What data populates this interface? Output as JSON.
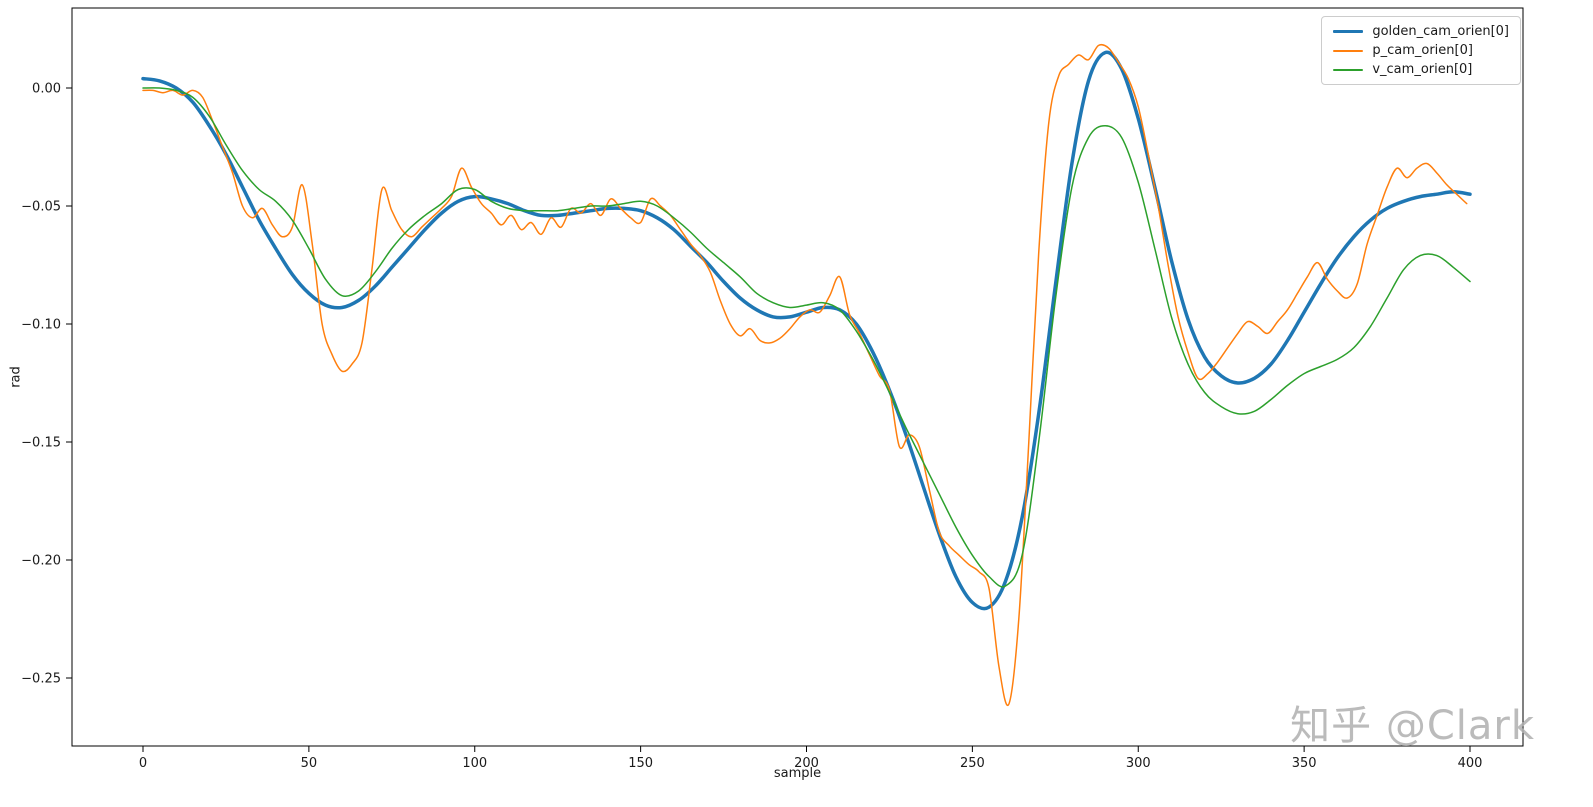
{
  "figure": {
    "watermark": "知乎 @Clark"
  },
  "chart_data": {
    "type": "line",
    "title": "",
    "xlabel": "sample",
    "ylabel": "rad",
    "xlim": [
      -21,
      416
    ],
    "ylim": [
      -0.278,
      0.034
    ],
    "grid": false,
    "legend_position": "upper right",
    "x_ticks": [
      0,
      50,
      100,
      150,
      200,
      250,
      300,
      350,
      400
    ],
    "x_tick_labels": [
      "0",
      "50",
      "100",
      "150",
      "200",
      "250",
      "300",
      "350",
      "400"
    ],
    "y_ticks": [
      0.0,
      -0.05,
      -0.1,
      -0.15,
      -0.2,
      -0.25
    ],
    "y_tick_labels": [
      "0.00",
      "−0.05",
      "−0.10",
      "−0.15",
      "−0.20",
      "−0.25"
    ],
    "series": [
      {
        "name": "golden_cam_orien[0]",
        "color": "#1f77b4",
        "line_width": 3.5,
        "x_start": 0,
        "x_step": 5,
        "y": [
          0.004,
          0.003,
          0.0,
          -0.006,
          -0.016,
          -0.028,
          -0.042,
          -0.056,
          -0.068,
          -0.079,
          -0.087,
          -0.092,
          -0.093,
          -0.09,
          -0.084,
          -0.076,
          -0.068,
          -0.06,
          -0.053,
          -0.048,
          -0.046,
          -0.047,
          -0.049,
          -0.052,
          -0.054,
          -0.054,
          -0.053,
          -0.052,
          -0.051,
          -0.051,
          -0.052,
          -0.055,
          -0.06,
          -0.067,
          -0.074,
          -0.082,
          -0.089,
          -0.094,
          -0.097,
          -0.097,
          -0.095,
          -0.093,
          -0.094,
          -0.1,
          -0.112,
          -0.128,
          -0.147,
          -0.168,
          -0.189,
          -0.207,
          -0.218,
          -0.22,
          -0.209,
          -0.182,
          -0.138,
          -0.084,
          -0.032,
          0.003,
          0.015,
          0.008,
          -0.013,
          -0.042,
          -0.073,
          -0.098,
          -0.114,
          -0.122,
          -0.125,
          -0.123,
          -0.117,
          -0.107,
          -0.095,
          -0.083,
          -0.072,
          -0.063,
          -0.056,
          -0.051,
          -0.048,
          -0.046,
          -0.045,
          -0.044,
          -0.045
        ]
      },
      {
        "name": "p_cam_orien[0]",
        "color": "#ff7f0e",
        "line_width": 1.5,
        "x_start": 0,
        "x_step": 3,
        "y": [
          -0.001,
          -0.001,
          -0.002,
          -0.001,
          -0.003,
          -0.001,
          -0.004,
          -0.014,
          -0.025,
          -0.036,
          -0.05,
          -0.055,
          -0.051,
          -0.058,
          -0.063,
          -0.059,
          -0.041,
          -0.066,
          -0.1,
          -0.113,
          -0.12,
          -0.117,
          -0.108,
          -0.077,
          -0.043,
          -0.052,
          -0.06,
          -0.063,
          -0.059,
          -0.055,
          -0.051,
          -0.046,
          -0.034,
          -0.042,
          -0.049,
          -0.053,
          -0.058,
          -0.054,
          -0.06,
          -0.057,
          -0.062,
          -0.055,
          -0.059,
          -0.051,
          -0.053,
          -0.049,
          -0.054,
          -0.047,
          -0.051,
          -0.055,
          -0.057,
          -0.047,
          -0.05,
          -0.054,
          -0.06,
          -0.066,
          -0.071,
          -0.078,
          -0.09,
          -0.1,
          -0.105,
          -0.102,
          -0.107,
          -0.108,
          -0.106,
          -0.102,
          -0.097,
          -0.094,
          -0.095,
          -0.088,
          -0.08,
          -0.096,
          -0.104,
          -0.113,
          -0.122,
          -0.128,
          -0.152,
          -0.147,
          -0.152,
          -0.17,
          -0.188,
          -0.194,
          -0.198,
          -0.202,
          -0.205,
          -0.212,
          -0.245,
          -0.261,
          -0.225,
          -0.15,
          -0.07,
          -0.015,
          0.005,
          0.01,
          0.014,
          0.012,
          0.018,
          0.017,
          0.011,
          0.004,
          -0.008,
          -0.028,
          -0.05,
          -0.075,
          -0.097,
          -0.112,
          -0.123,
          -0.121,
          -0.116,
          -0.11,
          -0.104,
          -0.099,
          -0.101,
          -0.104,
          -0.099,
          -0.094,
          -0.087,
          -0.08,
          -0.074,
          -0.081,
          -0.086,
          -0.089,
          -0.083,
          -0.066,
          -0.054,
          -0.042,
          -0.034,
          -0.038,
          -0.034,
          -0.032,
          -0.036,
          -0.041,
          -0.045,
          -0.049
        ]
      },
      {
        "name": "v_cam_orien[0]",
        "color": "#2ca02c",
        "line_width": 1.5,
        "x_start": 0,
        "x_step": 5,
        "y": [
          0.0,
          0.0,
          -0.001,
          -0.004,
          -0.012,
          -0.024,
          -0.035,
          -0.043,
          -0.048,
          -0.056,
          -0.068,
          -0.081,
          -0.088,
          -0.086,
          -0.078,
          -0.068,
          -0.06,
          -0.054,
          -0.049,
          -0.043,
          -0.043,
          -0.048,
          -0.051,
          -0.052,
          -0.052,
          -0.052,
          -0.051,
          -0.05,
          -0.05,
          -0.049,
          -0.048,
          -0.05,
          -0.055,
          -0.061,
          -0.068,
          -0.074,
          -0.08,
          -0.087,
          -0.091,
          -0.093,
          -0.092,
          -0.091,
          -0.094,
          -0.103,
          -0.115,
          -0.129,
          -0.144,
          -0.158,
          -0.172,
          -0.186,
          -0.198,
          -0.207,
          -0.211,
          -0.198,
          -0.15,
          -0.09,
          -0.042,
          -0.021,
          -0.016,
          -0.021,
          -0.04,
          -0.068,
          -0.097,
          -0.117,
          -0.129,
          -0.135,
          -0.138,
          -0.137,
          -0.132,
          -0.126,
          -0.121,
          -0.118,
          -0.115,
          -0.11,
          -0.101,
          -0.089,
          -0.077,
          -0.071,
          -0.071,
          -0.076,
          -0.082
        ]
      }
    ]
  }
}
